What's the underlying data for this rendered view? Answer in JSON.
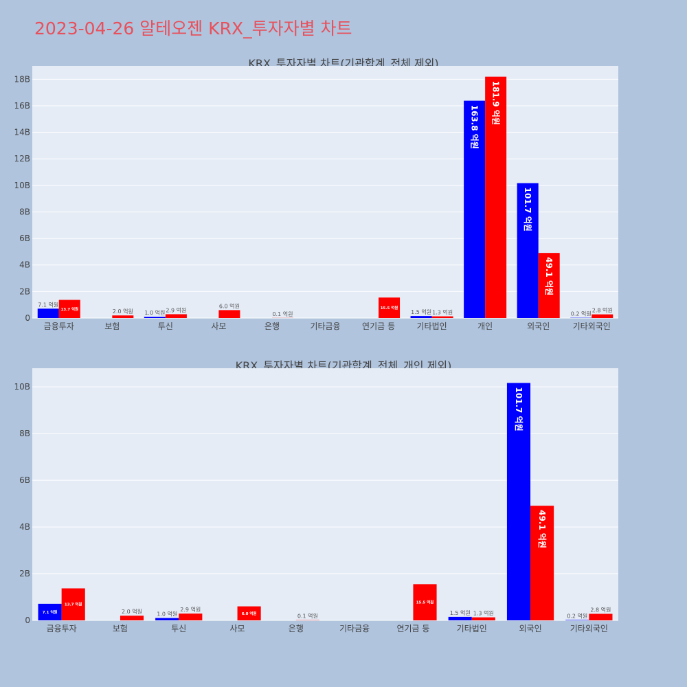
{
  "title": "2023-04-26 알테오젠 KRX_투자자별 차트",
  "colors": {
    "series_a": "#0000ff",
    "series_b": "#ff0000",
    "plot_bg": "#e5ecf6",
    "page_bg": "#b0c4de"
  },
  "chart_data": [
    {
      "type": "bar",
      "title": "KRX_투자자별 차트(기관합계_전체 제외)",
      "categories": [
        "금융투자",
        "보험",
        "투신",
        "사모",
        "은행",
        "기타금융",
        "연기금 등",
        "기타법인",
        "개인",
        "외국인",
        "기타외국인"
      ],
      "ylim": [
        0,
        19000000000
      ],
      "yticks": [
        0,
        2000000000,
        4000000000,
        6000000000,
        8000000000,
        10000000000,
        12000000000,
        14000000000,
        16000000000,
        18000000000
      ],
      "ytick_labels": [
        "0",
        "2B",
        "4B",
        "6B",
        "8B",
        "10B",
        "12B",
        "14B",
        "16B",
        "18B"
      ],
      "grid": true,
      "series": [
        {
          "values": [
            710000000,
            0,
            100000000,
            0,
            0,
            0,
            0,
            150000000,
            16380000000,
            10170000000,
            20000000
          ],
          "labels": [
            "7.1 억원",
            "",
            "1.0 억원",
            "",
            "",
            "",
            "",
            "1.5 억원",
            "163.8 억원",
            "101.7 억원",
            "0.2 억원"
          ]
        },
        {
          "values": [
            1370000000,
            200000000,
            290000000,
            600000000,
            10000000,
            0,
            1550000000,
            130000000,
            18190000000,
            4910000000,
            280000000
          ],
          "labels": [
            "13.7 억원",
            "2.0 억원",
            "2.9 억원",
            "6.0 억원",
            "0.1 억원",
            "",
            "15.5 억원",
            "1.3 억원",
            "181.9 억원",
            "49.1 억원",
            "2.8 억원"
          ]
        }
      ]
    },
    {
      "type": "bar",
      "title": "KRX_투자자별 차트(기관합계_전체_개인 제외)",
      "categories": [
        "금융투자",
        "보험",
        "투신",
        "사모",
        "은행",
        "기타금융",
        "연기금 등",
        "기타법인",
        "외국인",
        "기타외국인"
      ],
      "ylim": [
        0,
        10800000000
      ],
      "yticks": [
        0,
        2000000000,
        4000000000,
        6000000000,
        8000000000,
        10000000000
      ],
      "ytick_labels": [
        "0",
        "2B",
        "4B",
        "6B",
        "8B",
        "10B"
      ],
      "grid": true,
      "series": [
        {
          "values": [
            710000000,
            0,
            100000000,
            0,
            0,
            0,
            0,
            150000000,
            10170000000,
            20000000
          ],
          "labels": [
            "7.1 억원",
            "",
            "1.0 억원",
            "",
            "",
            "",
            "",
            "1.5 억원",
            "101.7 억원",
            "0.2 억원"
          ]
        },
        {
          "values": [
            1370000000,
            200000000,
            290000000,
            600000000,
            10000000,
            0,
            1550000000,
            130000000,
            4910000000,
            280000000
          ],
          "labels": [
            "13.7 억원",
            "2.0 억원",
            "2.9 억원",
            "6.0 억원",
            "0.1 억원",
            "",
            "15.5 억원",
            "1.3 억원",
            "49.1 억원",
            "2.8 억원"
          ]
        }
      ]
    }
  ]
}
